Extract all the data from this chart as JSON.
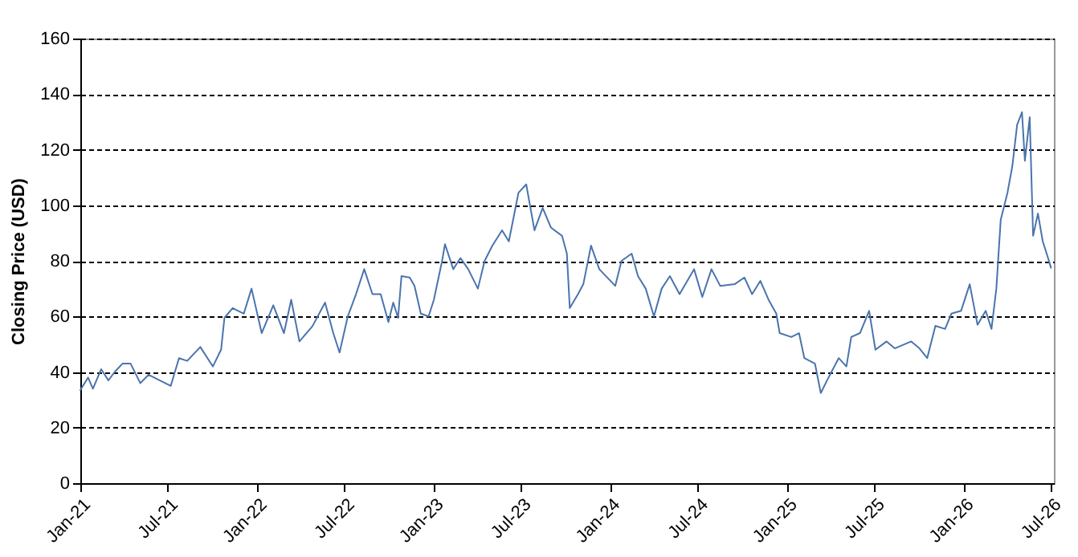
{
  "chart_data": {
    "type": "line",
    "ylabel": "Closing Price (USD)",
    "x": [
      "2021-01-01",
      "2021-01-17",
      "2021-01-27",
      "2021-02-13",
      "2021-02-28",
      "2021-03-13",
      "2021-03-29",
      "2021-04-15",
      "2021-05-05",
      "2021-05-22",
      "2021-06-14",
      "2021-07-07",
      "2021-07-24",
      "2021-08-10",
      "2021-09-06",
      "2021-10-02",
      "2021-10-19",
      "2021-10-26",
      "2021-11-12",
      "2021-12-05",
      "2021-12-21",
      "2022-01-11",
      "2022-02-04",
      "2022-02-26",
      "2022-03-13",
      "2022-03-30",
      "2022-04-26",
      "2022-05-22",
      "2022-06-08",
      "2022-06-21",
      "2022-07-08",
      "2022-07-25",
      "2022-08-11",
      "2022-08-28",
      "2022-09-14",
      "2022-09-30",
      "2022-10-10",
      "2022-10-20",
      "2022-10-27",
      "2022-11-13",
      "2022-11-23",
      "2022-12-06",
      "2022-12-22",
      "2023-01-02",
      "2023-01-19",
      "2023-01-25",
      "2023-02-11",
      "2023-02-26",
      "2023-03-14",
      "2023-04-03",
      "2023-04-17",
      "2023-05-03",
      "2023-05-23",
      "2023-06-06",
      "2023-06-26",
      "2023-07-12",
      "2023-07-29",
      "2023-08-15",
      "2023-09-01",
      "2023-09-24",
      "2023-10-04",
      "2023-10-10",
      "2023-10-27",
      "2023-11-07",
      "2023-11-23",
      "2023-12-10",
      "2024-01-12",
      "2024-01-25",
      "2024-02-15",
      "2024-02-28",
      "2024-03-15",
      "2024-04-01",
      "2024-04-17",
      "2024-05-04",
      "2024-05-24",
      "2024-06-23",
      "2024-07-10",
      "2024-07-29",
      "2024-08-16",
      "2024-09-15",
      "2024-10-05",
      "2024-10-21",
      "2024-11-07",
      "2024-11-24",
      "2024-12-10",
      "2024-12-17",
      "2025-01-10",
      "2025-01-26",
      "2025-02-06",
      "2025-02-28",
      "2025-03-12",
      "2025-03-25",
      "2025-04-18",
      "2025-05-04",
      "2025-05-14",
      "2025-06-01",
      "2025-06-20",
      "2025-07-03",
      "2025-07-26",
      "2025-08-12",
      "2025-09-15",
      "2025-10-02",
      "2025-10-18",
      "2025-11-04",
      "2025-11-24",
      "2025-12-07",
      "2025-12-27",
      "2026-01-14",
      "2026-01-30",
      "2026-02-16",
      "2026-02-28",
      "2026-03-10",
      "2026-03-19",
      "2026-04-02",
      "2026-04-12",
      "2026-04-22",
      "2026-05-02",
      "2026-05-08",
      "2026-05-18",
      "2026-05-25",
      "2026-06-04",
      "2026-06-14",
      "2026-06-24",
      "2026-07-01"
    ],
    "series": [
      {
        "color": "#4a74ad",
        "values": [
          33.5,
          38,
          34,
          41,
          37,
          40,
          43,
          43,
          36,
          39,
          37,
          35,
          45,
          44,
          49,
          42,
          48,
          59.5,
          63,
          61,
          70,
          54,
          64,
          54,
          66,
          51,
          56.5,
          65,
          54,
          47,
          60,
          68,
          77,
          68,
          68,
          58,
          65,
          59.5,
          74.5,
          74,
          71,
          61,
          60,
          66,
          80,
          86,
          77,
          81,
          77,
          70,
          80,
          85.5,
          91,
          87,
          104.5,
          107.5,
          91,
          99,
          92,
          89,
          82.6,
          63,
          68,
          71.6,
          85.5,
          77,
          71,
          80,
          82.6,
          74.5,
          70,
          60,
          70,
          74.5,
          68,
          77,
          67,
          77,
          71,
          71.6,
          74,
          68,
          72.8,
          66,
          61,
          54,
          52.6,
          54,
          45,
          43,
          32.4,
          37,
          45,
          42,
          52.6,
          54,
          62,
          48,
          51,
          48.5,
          51,
          48.5,
          45,
          56.6,
          55.5,
          61,
          62,
          71.6,
          57,
          62,
          55.5,
          70,
          94.7,
          104.5,
          114,
          129,
          133.5,
          116,
          131.7,
          89,
          97,
          87,
          81.5,
          77.5
        ]
      }
    ],
    "xlim": [
      "2021-01-01",
      "2026-07-07"
    ],
    "xticks": [
      {
        "value": "2021-01-01",
        "label": "Jan-21"
      },
      {
        "value": "2021-07-01",
        "label": "Jul-21"
      },
      {
        "value": "2022-01-01",
        "label": "Jan-22"
      },
      {
        "value": "2022-07-01",
        "label": "Jul-22"
      },
      {
        "value": "2023-01-01",
        "label": "Jan-23"
      },
      {
        "value": "2023-07-01",
        "label": "Jul-23"
      },
      {
        "value": "2024-01-01",
        "label": "Jan-24"
      },
      {
        "value": "2024-07-01",
        "label": "Jul-24"
      },
      {
        "value": "2025-01-01",
        "label": "Jan-25"
      },
      {
        "value": "2025-07-01",
        "label": "Jul-25"
      },
      {
        "value": "2026-01-01",
        "label": "Jan-26"
      },
      {
        "value": "2026-07-01",
        "label": "Jul-26"
      }
    ],
    "ylim": [
      0,
      160
    ],
    "yticks": [
      0,
      20,
      40,
      60,
      80,
      100,
      120,
      140,
      160
    ],
    "grid": "y",
    "line_style": "solid"
  }
}
